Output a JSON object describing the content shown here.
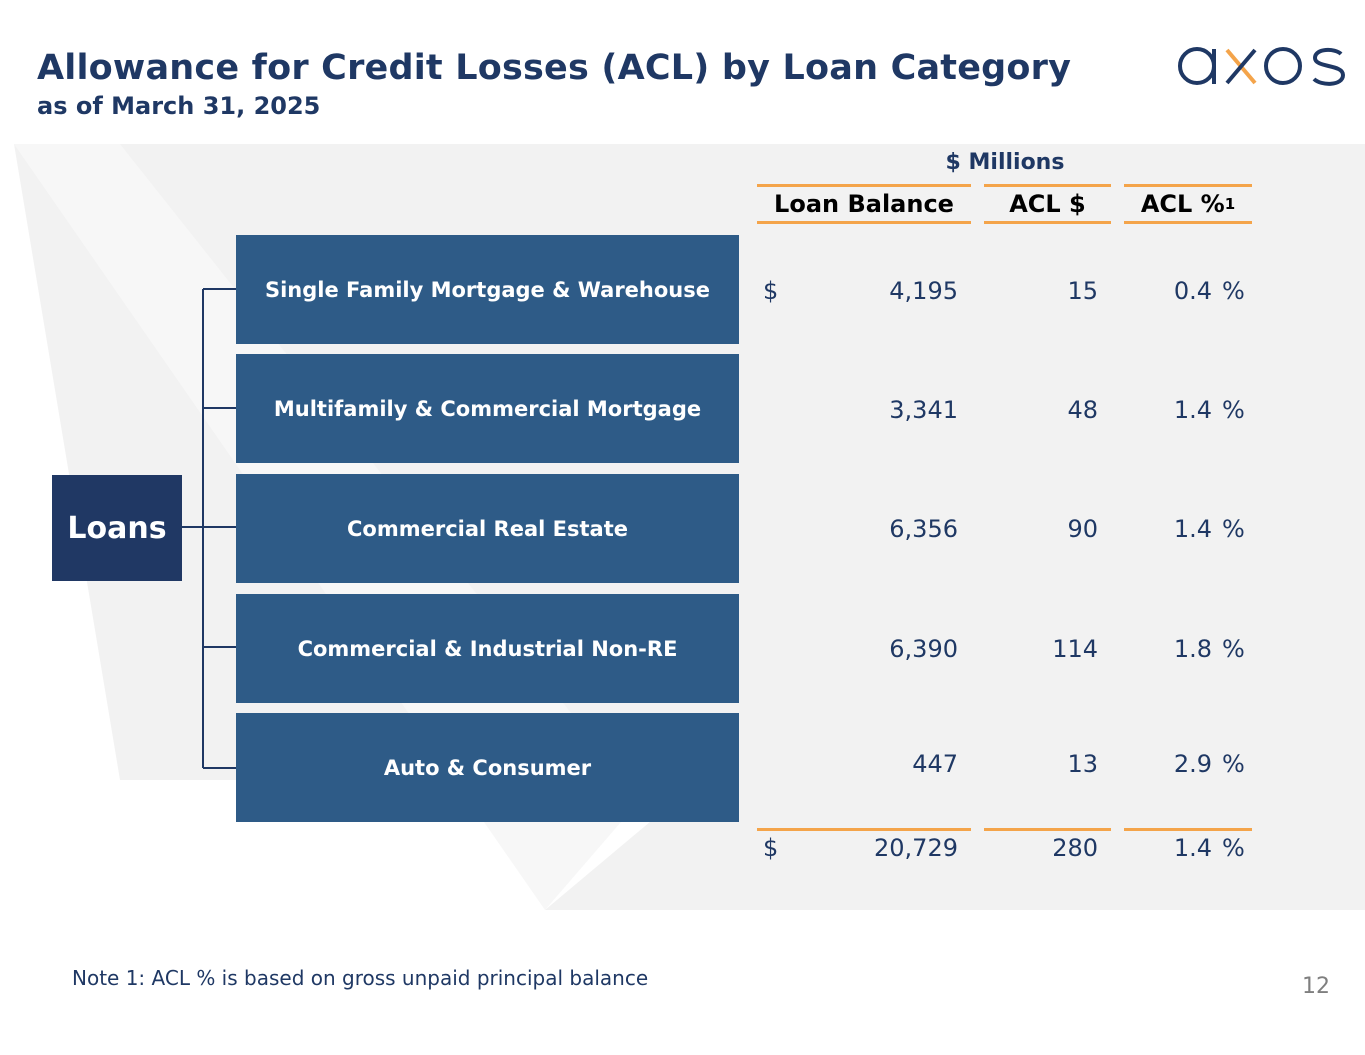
{
  "header": {
    "title": "Allowance for Credit Losses (ACL) by Loan Category",
    "subtitle": "as of March 31, 2025"
  },
  "logo": {
    "text": "axos",
    "colors": {
      "primary": "#1f3864",
      "accent": "#f4a44a"
    }
  },
  "table": {
    "units": "$ Millions",
    "columns": {
      "loan_balance": "Loan Balance",
      "acl_dollars": "ACL $",
      "acl_percent": "ACL %",
      "acl_percent_footnote": "1"
    },
    "root_label": "Loans",
    "currency_symbol": "$",
    "percent_symbol": "%",
    "rows": [
      {
        "category": "Single Family Mortgage & Warehouse",
        "loan_balance": "4,195",
        "acl": "15",
        "acl_pct": "0.4"
      },
      {
        "category": "Multifamily & Commercial Mortgage",
        "loan_balance": "3,341",
        "acl": "48",
        "acl_pct": "1.4"
      },
      {
        "category": "Commercial Real Estate",
        "loan_balance": "6,356",
        "acl": "90",
        "acl_pct": "1.4"
      },
      {
        "category": "Commercial & Industrial Non-RE",
        "loan_balance": "6,390",
        "acl": "114",
        "acl_pct": "1.8"
      },
      {
        "category": "Auto & Consumer",
        "loan_balance": "447",
        "acl": "13",
        "acl_pct": "2.9"
      }
    ],
    "total": {
      "loan_balance": "20,729",
      "acl": "280",
      "acl_pct": "1.4"
    }
  },
  "footer": {
    "note": "Note 1: ACL % is based on gross unpaid principal balance",
    "page_number": "12"
  },
  "colors": {
    "navy": "#1f3864",
    "box_blue": "#2e5b87",
    "root_navy": "#203864",
    "orange_rule": "#f4a44a",
    "panel_gray": "#f2f2f2"
  }
}
